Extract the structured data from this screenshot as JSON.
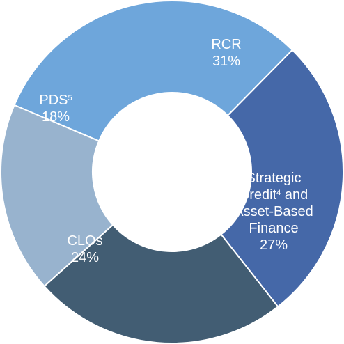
{
  "chart_data": {
    "type": "pie",
    "donut": true,
    "title": "",
    "slices": [
      {
        "label": "RCR",
        "display_value": "31%",
        "value": 31,
        "color": "#6ea6db"
      },
      {
        "label": "Strategic Credit4 and Asset-Based Finance",
        "display_value": "27%",
        "value": 27,
        "color": "#4568a8"
      },
      {
        "label": "CLOs",
        "display_value": "24%",
        "value": 24,
        "color": "#425d73"
      },
      {
        "label": "PDS5",
        "display_value": "18%",
        "value": 18,
        "color": "#98b3ce"
      }
    ],
    "label_lines": [
      [
        {
          "text": "RCR"
        }
      ],
      [
        {
          "text": "Strategic"
        },
        {
          "text": "Credit"
        },
        {
          "text": "4",
          "sup": true
        },
        {
          "text": " and"
        },
        {
          "text": "Asset-Based"
        },
        {
          "text": "Finance"
        }
      ],
      [
        {
          "text": "CLOs"
        }
      ],
      [
        {
          "text": "PDS"
        },
        {
          "text": "5",
          "sup": true
        }
      ]
    ],
    "legend": "none"
  }
}
